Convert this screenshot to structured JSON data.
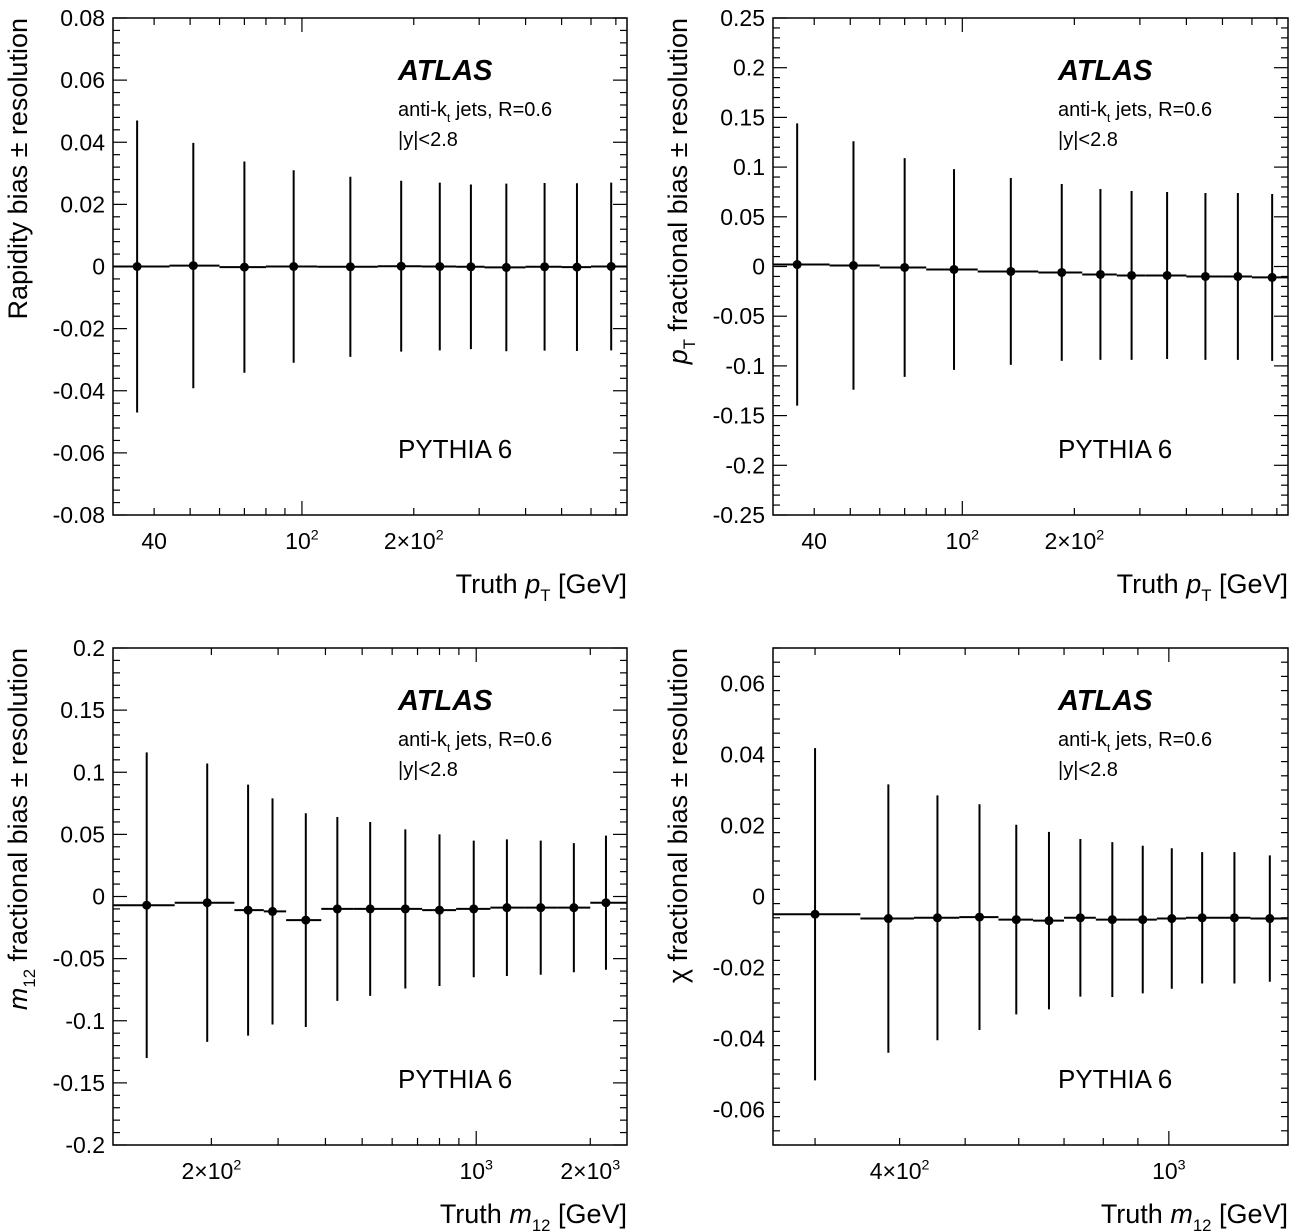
{
  "chart_data": [
    {
      "type": "scatter",
      "ylabel": "Rapidity bias ± resolution",
      "xlabel": "Truth p_T [GeV]",
      "xscale": "log",
      "xlim": [
        31,
        750
      ],
      "ylim": [
        -0.08,
        0.08
      ],
      "yticks": [
        "0.08",
        "0.06",
        "0.04",
        "0.02",
        "0",
        "-0.02",
        "-0.04",
        "-0.06",
        "-0.08"
      ],
      "xtick_labels": [
        "40",
        "10^2",
        "2×10^2"
      ],
      "bin_edges": [
        31,
        44,
        60,
        80,
        110,
        160,
        210,
        260,
        310,
        400,
        500,
        600,
        750
      ],
      "x": [
        36,
        51,
        70,
        95,
        135,
        185,
        235,
        285,
        355,
        450,
        550,
        680
      ],
      "y": [
        0.0,
        0.0003,
        -0.0002,
        0.0,
        -0.0001,
        0.0001,
        0.0,
        -0.0001,
        -0.0003,
        -0.0001,
        -0.0002,
        0.0
      ],
      "err": [
        0.047,
        0.0395,
        0.034,
        0.031,
        0.029,
        0.0275,
        0.027,
        0.0265,
        0.027,
        0.027,
        0.027,
        0.027
      ],
      "annotations": {
        "experiment": "ATLAS",
        "jets": "anti-k_t jets, R=0.6",
        "cut": "|y|<2.8",
        "generator": "PYTHIA 6"
      }
    },
    {
      "type": "scatter",
      "ylabel": "p_T fractional bias ± resolution",
      "xlabel": "Truth p_T [GeV]",
      "xscale": "log",
      "xlim": [
        31,
        750
      ],
      "ylim": [
        -0.25,
        0.25
      ],
      "yticks": [
        "0.25",
        "0.2",
        "0.15",
        "0.1",
        "0.05",
        "0",
        "-0.05",
        "-0.1",
        "-0.15",
        "-0.2",
        "-0.25"
      ],
      "xtick_labels": [
        "40",
        "10^2",
        "2×10^2"
      ],
      "bin_edges": [
        31,
        44,
        60,
        80,
        110,
        160,
        210,
        260,
        310,
        400,
        500,
        600,
        750
      ],
      "x": [
        36,
        51,
        70,
        95,
        135,
        185,
        235,
        285,
        355,
        450,
        550,
        680
      ],
      "y": [
        0.002,
        0.001,
        -0.001,
        -0.003,
        -0.005,
        -0.006,
        -0.008,
        -0.009,
        -0.009,
        -0.01,
        -0.01,
        -0.011
      ],
      "err": [
        0.142,
        0.125,
        0.11,
        0.101,
        0.094,
        0.089,
        0.086,
        0.085,
        0.084,
        0.084,
        0.084,
        0.084
      ],
      "annotations": {
        "experiment": "ATLAS",
        "jets": "anti-k_t jets, R=0.6",
        "cut": "|y|<2.8",
        "generator": "PYTHIA 6"
      }
    },
    {
      "type": "scatter",
      "ylabel": "m_12 fractional bias ± resolution",
      "xlabel": "Truth m_12 [GeV]",
      "xscale": "log",
      "xlim": [
        110,
        2500
      ],
      "ylim": [
        -0.2,
        0.2
      ],
      "yticks": [
        "0.2",
        "0.15",
        "0.1",
        "0.05",
        "0",
        "-0.05",
        "-0.1",
        "-0.15",
        "-0.2"
      ],
      "xtick_labels": [
        "2×10^2",
        "10^3",
        "2×10^3"
      ],
      "bin_edges": [
        110,
        160,
        230,
        275,
        315,
        390,
        475,
        585,
        720,
        885,
        1090,
        1340,
        1640,
        2000,
        2500
      ],
      "x": [
        135,
        195,
        250,
        290,
        355,
        430,
        525,
        650,
        800,
        985,
        1205,
        1480,
        1810,
        2200
      ],
      "y": [
        -0.007,
        -0.005,
        -0.011,
        -0.012,
        -0.019,
        -0.01,
        -0.01,
        -0.01,
        -0.011,
        -0.01,
        -0.009,
        -0.009,
        -0.009,
        -0.005
      ],
      "err": [
        0.123,
        0.112,
        0.101,
        0.091,
        0.086,
        0.074,
        0.07,
        0.064,
        0.061,
        0.055,
        0.055,
        0.054,
        0.052,
        0.054
      ],
      "annotations": {
        "experiment": "ATLAS",
        "jets": "anti-k_t jets, R=0.6",
        "cut": "|y|<2.8",
        "generator": "PYTHIA 6"
      }
    },
    {
      "type": "scatter",
      "ylabel": "χ fractional bias ± resolution",
      "xlabel": "Truth m_12 [GeV]",
      "xscale": "log",
      "xlim": [
        260,
        1500
      ],
      "ylim": [
        -0.07,
        0.07
      ],
      "yticks": [
        "0.06",
        "0.04",
        "0.02",
        "0",
        "-0.02",
        "-0.04",
        "-0.06"
      ],
      "xtick_labels": [
        "4×10^2",
        "10^3"
      ],
      "bin_edges": [
        260,
        350,
        420,
        490,
        560,
        630,
        700,
        780,
        870,
        960,
        1060,
        1180,
        1320,
        1500
      ],
      "x": [
        300,
        385,
        455,
        525,
        595,
        665,
        740,
        825,
        915,
        1010,
        1120,
        1250,
        1410
      ],
      "y": [
        -0.005,
        -0.0062,
        -0.006,
        -0.0058,
        -0.0065,
        -0.0068,
        -0.006,
        -0.0065,
        -0.0065,
        -0.0062,
        -0.006,
        -0.006,
        -0.0062
      ],
      "err": [
        0.0468,
        0.0378,
        0.0345,
        0.0318,
        0.0267,
        0.025,
        0.0222,
        0.0218,
        0.0208,
        0.0198,
        0.0185,
        0.0185,
        0.0178
      ],
      "annotations": {
        "experiment": "ATLAS",
        "jets": "anti-k_t jets, R=0.6",
        "cut": "|y|<2.8",
        "generator": "PYTHIA 6"
      }
    }
  ]
}
